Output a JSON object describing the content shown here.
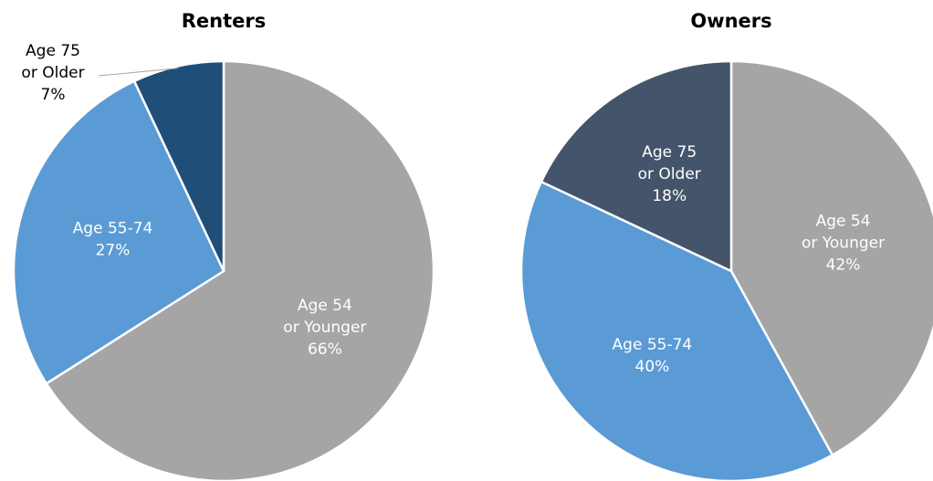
{
  "chart_data": [
    {
      "type": "pie",
      "title": "Renters",
      "categories": [
        "Age 54 or Younger",
        "Age 55-74",
        "Age 75 or Older"
      ],
      "values": [
        66,
        27,
        7
      ],
      "value_labels": [
        "66%",
        "27%",
        "7%"
      ],
      "colors": [
        "#a5a5a5",
        "#5b9bd5",
        "#1f4e79"
      ]
    },
    {
      "type": "pie",
      "title": "Owners",
      "categories": [
        "Age 54 or Younger",
        "Age 55-74",
        "Age 75 or Older"
      ],
      "values": [
        42,
        40,
        18
      ],
      "value_labels": [
        "42%",
        "40%",
        "18%"
      ],
      "colors": [
        "#a5a5a5",
        "#5b9bd5",
        "#44546a"
      ]
    }
  ]
}
